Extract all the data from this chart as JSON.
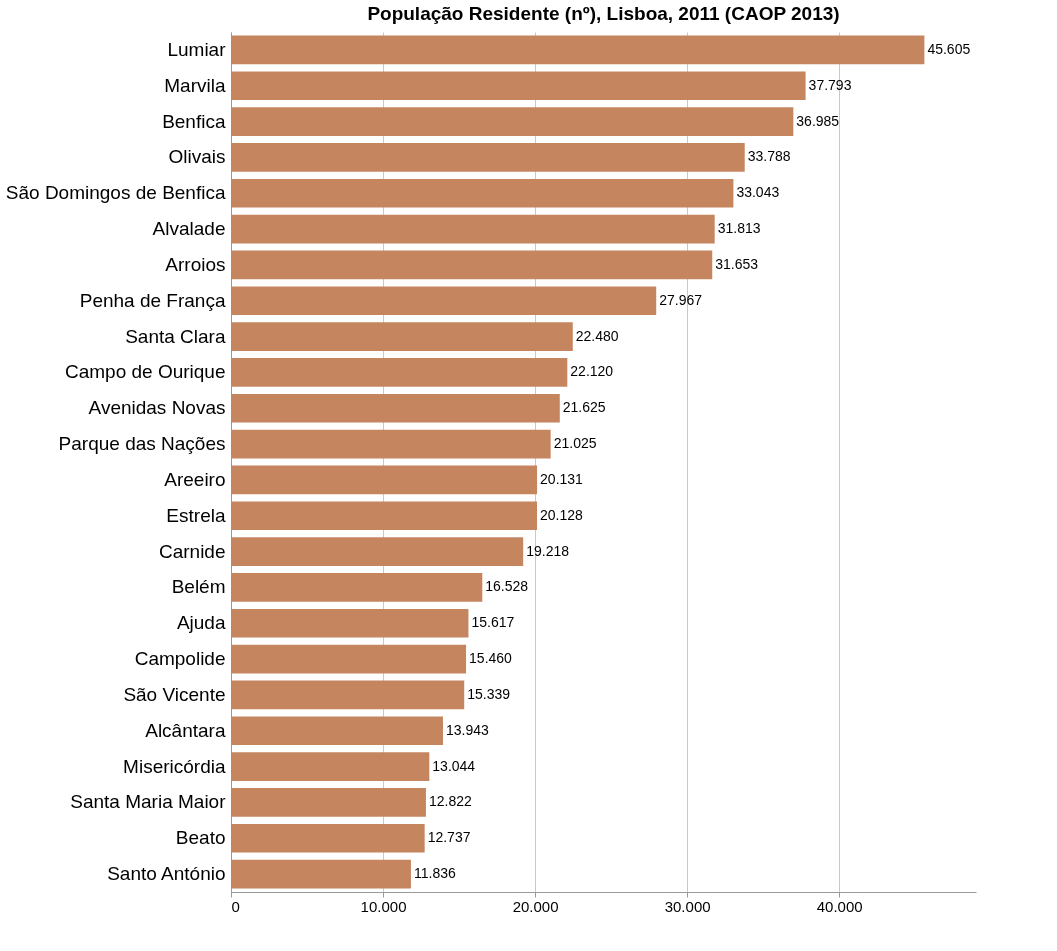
{
  "chart_data": {
    "type": "bar",
    "orientation": "horizontal",
    "title": "População Residente (nº), Lisboa, 2011 (CAOP 2013)",
    "categories": [
      "Lumiar",
      "Marvila",
      "Benfica",
      "Olivais",
      "São Domingos de Benfica",
      "Alvalade",
      "Arroios",
      "Penha de França",
      "Santa Clara",
      "Campo de Ourique",
      "Avenidas Novas",
      "Parque das Nações",
      "Areeiro",
      "Estrela",
      "Carnide",
      "Belém",
      "Ajuda",
      "Campolide",
      "São Vicente",
      "Alcântara",
      "Misericórdia",
      "Santa Maria Maior",
      "Beato",
      "Santo António"
    ],
    "values": [
      45605,
      37793,
      36985,
      33788,
      33043,
      31813,
      31653,
      27967,
      22480,
      22120,
      21625,
      21025,
      20131,
      20128,
      19218,
      16528,
      15617,
      15460,
      15339,
      13943,
      13044,
      12822,
      12737,
      11836
    ],
    "value_labels": [
      "45.605",
      "37.793",
      "36.985",
      "33.788",
      "33.043",
      "31.813",
      "31.653",
      "27.967",
      "22.480",
      "22.120",
      "21.625",
      "21.025",
      "20.131",
      "20.128",
      "19.218",
      "16.528",
      "15.617",
      "15.460",
      "15.339",
      "13.943",
      "13.044",
      "12.822",
      "12.737",
      "11.836"
    ],
    "color": "#c5865f",
    "xlim": [
      0,
      49000
    ],
    "xticks": [
      0,
      {
        "value": 10000,
        "label": "10.000"
      },
      {
        "value": 20000,
        "label": "20.000"
      },
      {
        "value": 30000,
        "label": "30.000"
      },
      {
        "value": 40000,
        "label": "40.000"
      }
    ],
    "grid": "x"
  }
}
